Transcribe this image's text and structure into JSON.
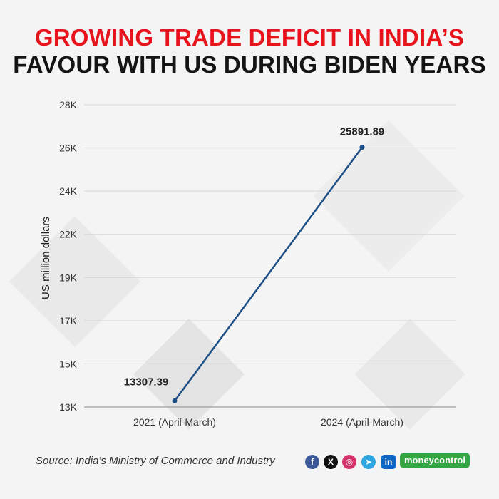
{
  "title_line_1": "GROWING TRADE DEFICIT IN INDIA’S",
  "title_line_2": "FAVOUR WITH US DURING BIDEN YEARS",
  "chart_data": {
    "type": "line",
    "x": [
      "2021 (April-March)",
      "2024 (April-March)"
    ],
    "series": [
      {
        "values": [
          13307.39,
          25891.89
        ]
      }
    ],
    "data_labels": [
      "13307.39",
      "25891.89"
    ],
    "ylabel": "US million dollars",
    "ytick_labels": [
      "13K",
      "15K",
      "17K",
      "19K",
      "22K",
      "24K",
      "26K",
      "28K"
    ],
    "ylim": [
      13000,
      28000
    ],
    "grid": true,
    "line_color": "#1d4f86"
  },
  "footer": {
    "source": "Source: India’s Ministry of Commerce and Industry",
    "social_icons": [
      "facebook-icon",
      "x-icon",
      "instagram-icon",
      "telegram-icon",
      "linkedin-icon"
    ],
    "brand": "moneycontrol"
  }
}
